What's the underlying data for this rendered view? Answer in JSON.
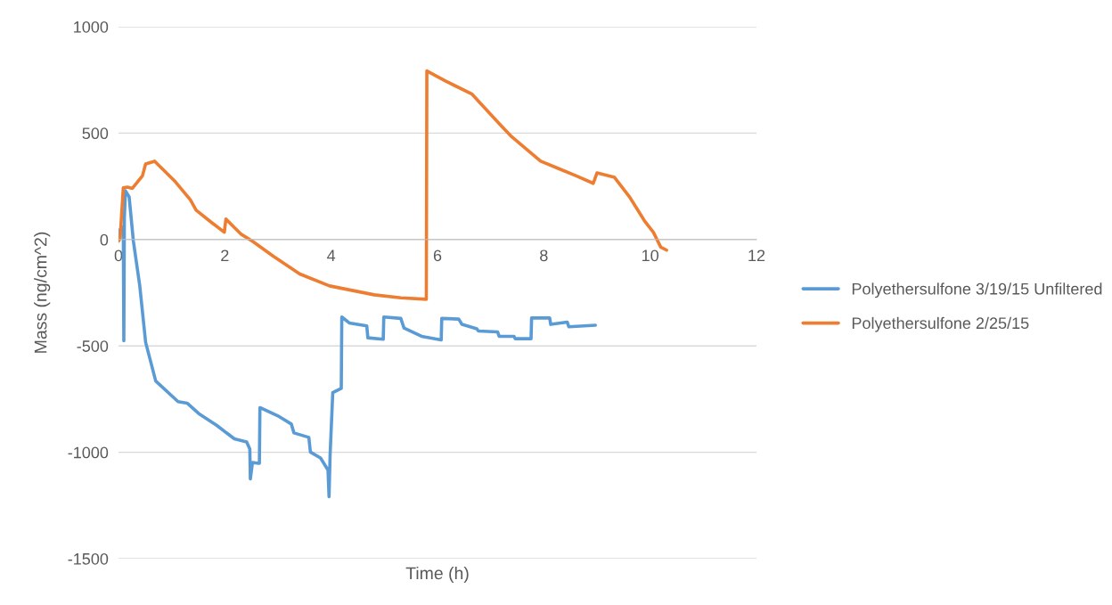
{
  "chart_data": {
    "type": "line",
    "xlabel": "Time (h)",
    "ylabel": "Mass (ng/cm^2)",
    "xlim": [
      0,
      12
    ],
    "xticks": [
      0,
      2,
      4,
      6,
      8,
      10,
      12
    ],
    "ylim": [
      -1500,
      1000
    ],
    "yticks": [
      -1500,
      -1000,
      -500,
      0,
      500,
      1000
    ],
    "grid": "y",
    "legend": "right",
    "marker": "none",
    "line_style": "solid",
    "series": [
      {
        "name": "Polyethersulfone 3/19/15 Unfiltered",
        "color": "#5b9bd5",
        "x": [
          0.0,
          0.03,
          0.09,
          0.1,
          0.11,
          0.13,
          0.2,
          0.28,
          0.4,
          0.51,
          0.7,
          1.12,
          1.29,
          1.51,
          1.85,
          2.18,
          2.41,
          2.47,
          2.48,
          2.52,
          2.63,
          2.65,
          2.66,
          3.02,
          3.25,
          3.3,
          3.58,
          3.61,
          3.8,
          3.94,
          3.96,
          3.98,
          4.03,
          4.19,
          4.2,
          4.34,
          4.67,
          4.69,
          4.98,
          4.99,
          5.31,
          5.37,
          5.7,
          6.07,
          6.08,
          6.4,
          6.46,
          6.74,
          6.77,
          7.13,
          7.16,
          7.44,
          7.46,
          7.76,
          7.77,
          8.11,
          8.13,
          8.44,
          8.47,
          8.97
        ],
        "values": [
          0,
          47,
          60,
          -476,
          100,
          229,
          200,
          -8,
          -218,
          -483,
          -665,
          -762,
          -769,
          -818,
          -874,
          -937,
          -951,
          -985,
          -1125,
          -1048,
          -1052,
          -1052,
          -790,
          -832,
          -867,
          -909,
          -930,
          -999,
          -1027,
          -1083,
          -1209,
          -1013,
          -720,
          -700,
          -364,
          -392,
          -406,
          -462,
          -469,
          -364,
          -371,
          -416,
          -455,
          -472,
          -371,
          -374,
          -399,
          -420,
          -430,
          -434,
          -455,
          -455,
          -466,
          -466,
          -369,
          -369,
          -399,
          -388,
          -410,
          -403
        ]
      },
      {
        "name": "Polyethersulfone 2/25/15",
        "color": "#ed7d31",
        "x": [
          0.0,
          0.03,
          0.09,
          0.17,
          0.26,
          0.45,
          0.51,
          0.68,
          1.07,
          1.35,
          1.46,
          1.74,
          1.99,
          2.02,
          2.3,
          2.52,
          2.91,
          3.41,
          3.97,
          4.81,
          5.31,
          5.79,
          5.8,
          6.15,
          6.65,
          7.18,
          7.38,
          7.94,
          8.27,
          8.61,
          8.93,
          9.0,
          9.33,
          9.61,
          9.89,
          10.06,
          10.2,
          10.31
        ],
        "values": [
          -8,
          5,
          243,
          246,
          240,
          299,
          355,
          368,
          271,
          187,
          138,
          82,
          34,
          96,
          26,
          -8,
          -78,
          -162,
          -218,
          -260,
          -274,
          -281,
          792,
          745,
          683,
          539,
          487,
          368,
          334,
          299,
          264,
          313,
          292,
          201,
          89,
          34,
          -36,
          -50
        ]
      }
    ]
  }
}
